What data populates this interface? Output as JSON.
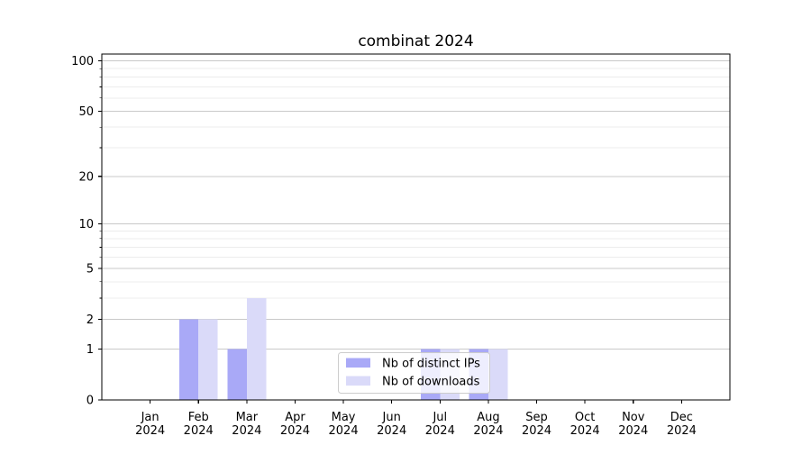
{
  "chart_data": {
    "type": "bar",
    "title": "combinat 2024",
    "categories": [
      "Jan",
      "Feb",
      "Mar",
      "Apr",
      "May",
      "Jun",
      "Jul",
      "Aug",
      "Sep",
      "Oct",
      "Nov",
      "Dec"
    ],
    "year_label": "2024",
    "series": [
      {
        "name": "Nb of distinct IPs",
        "color": "#a9a9f7",
        "values": [
          0,
          2,
          1,
          0,
          0,
          0,
          1,
          1,
          0,
          0,
          0,
          0
        ]
      },
      {
        "name": "Nb of downloads",
        "color": "#dadaf9",
        "values": [
          0,
          2,
          3,
          0,
          0,
          0,
          1,
          1,
          0,
          0,
          0,
          0
        ]
      }
    ],
    "xlabel": "",
    "ylabel": "",
    "y_scale": "log1p",
    "ylim": [
      0,
      110
    ],
    "y_ticks": [
      0,
      1,
      2,
      5,
      10,
      20,
      50,
      100
    ],
    "y_minor_ticks": [
      3,
      4,
      6,
      7,
      8,
      9,
      30,
      40,
      60,
      70,
      80,
      90
    ],
    "grid": "horizontal",
    "legend_position": "lower center",
    "colors": {
      "spine": "#000000",
      "grid_major": "#c9c9c9",
      "grid_minor": "#ececec",
      "background": "#ffffff"
    }
  }
}
